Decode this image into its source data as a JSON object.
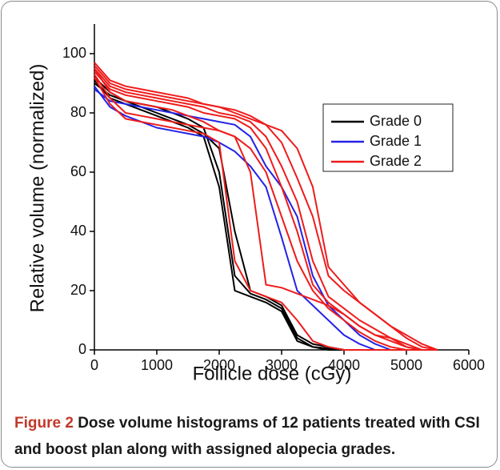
{
  "chart_data": {
    "type": "line",
    "xlabel": "Follicle dose (cGy)",
    "ylabel": "Relative volume (normalized)",
    "figure_label": "Figure 2",
    "caption": "Dose volume histograms of 12 patients treated with CSI and boost plan along with assigned alopecia grades.",
    "x": [
      0,
      250,
      500,
      750,
      1000,
      1250,
      1500,
      1750,
      2000,
      2250,
      2500,
      2750,
      3000,
      3250,
      3500,
      3750,
      4000,
      4250,
      4500,
      4750,
      5000,
      5250,
      5500
    ],
    "xlim": [
      0,
      6000
    ],
    "xticks": [
      0,
      1000,
      2000,
      3000,
      4000,
      5000,
      6000
    ],
    "ylim": [
      0,
      110
    ],
    "yticks": [
      0,
      20,
      40,
      60,
      80,
      100
    ],
    "legend": "upper right",
    "series": [
      {
        "name": "Grade 0",
        "color": "#000000",
        "values": [
          [
            90,
            86,
            84,
            83,
            82,
            80,
            78,
            75,
            60,
            25,
            19,
            17,
            14,
            4,
            1,
            0.5,
            0,
            0,
            0,
            0,
            0,
            0,
            0
          ],
          [
            91,
            85,
            83,
            81,
            79,
            77,
            75,
            72,
            55,
            20,
            18,
            16,
            13,
            3,
            1,
            0,
            0,
            0,
            0,
            0,
            0,
            0,
            0
          ],
          [
            92,
            87,
            84,
            82,
            80,
            78,
            76,
            73,
            68,
            40,
            20,
            18,
            15,
            5,
            2,
            1,
            0,
            0,
            0,
            0,
            0,
            0,
            0
          ]
        ]
      },
      {
        "name": "Grade 1",
        "color": "#2323e6",
        "values": [
          [
            89,
            82,
            79,
            77,
            75,
            74,
            73,
            72,
            70,
            67,
            62,
            55,
            38,
            20,
            15,
            10,
            5,
            2,
            0,
            0,
            0,
            0,
            0
          ],
          [
            88,
            84,
            83,
            82,
            81,
            80,
            79,
            78,
            77,
            76,
            72,
            62,
            55,
            45,
            25,
            15,
            10,
            5,
            2,
            0,
            0,
            0,
            0
          ]
        ]
      },
      {
        "name": "Grade 2",
        "color": "#ee1c1c",
        "values": [
          [
            97,
            91,
            89,
            88,
            87,
            86,
            85,
            83,
            82,
            81,
            79,
            76,
            70,
            58,
            45,
            25,
            20,
            16,
            12,
            8,
            4,
            1,
            0
          ],
          [
            95,
            89,
            87,
            86,
            85,
            84,
            83,
            82,
            80,
            79,
            77,
            72,
            62,
            50,
            30,
            18,
            14,
            10,
            7,
            4,
            2,
            0,
            0
          ],
          [
            94,
            88,
            86,
            85,
            84,
            83,
            82,
            80,
            79,
            78,
            75,
            68,
            55,
            40,
            22,
            16,
            12,
            8,
            5,
            3,
            1,
            0,
            0
          ],
          [
            93,
            85,
            80,
            79,
            78,
            77,
            76,
            75,
            74,
            72,
            60,
            22,
            21,
            19,
            17,
            15,
            12,
            8,
            5,
            4,
            1,
            0,
            0
          ],
          [
            92,
            83,
            78,
            77,
            76,
            75,
            74,
            73,
            70,
            30,
            20,
            18,
            16,
            10,
            3,
            1,
            0,
            0,
            0,
            0,
            0,
            0,
            0
          ],
          [
            96,
            90,
            88,
            87,
            86,
            85,
            84,
            83,
            82,
            80,
            78,
            76,
            74,
            68,
            55,
            28,
            22,
            16,
            12,
            8,
            5,
            2,
            0
          ],
          [
            95,
            87,
            84,
            83,
            82,
            81,
            79,
            77,
            74,
            72,
            68,
            60,
            45,
            30,
            20,
            14,
            10,
            6,
            3,
            1,
            0,
            0,
            0
          ]
        ]
      }
    ]
  }
}
